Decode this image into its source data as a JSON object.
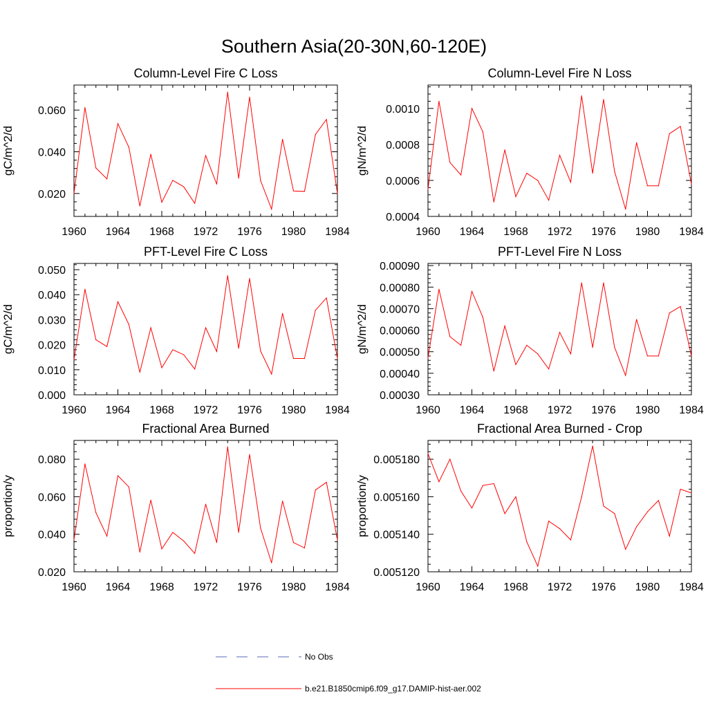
{
  "figure_title": "Southern Asia(20-30N,60-120E)",
  "legend": {
    "obs_label": "No Obs",
    "model_label": "b.e21.B1850cmip6.f09_g17.DAMIP-hist-aer.002",
    "obs_color": "#5a6ab0",
    "model_color": "#ff0000"
  },
  "chart_data": [
    {
      "type": "line",
      "title": "Column-Level Fire C Loss",
      "ylabel": "gC/m^2/d",
      "xlim": [
        1960,
        1984
      ],
      "ylim": [
        0.009,
        0.072
      ],
      "xticks": [
        1960,
        1964,
        1968,
        1972,
        1976,
        1980,
        1984
      ],
      "xtick_labels": [
        "1960",
        "1964",
        "1968",
        "1972",
        "1976",
        "1980",
        "1984"
      ],
      "yticks": [
        0.02,
        0.04,
        0.06
      ],
      "ytick_labels": [
        "0.020",
        "0.040",
        "0.060"
      ],
      "x": [
        1960,
        1961,
        1962,
        1963,
        1964,
        1965,
        1966,
        1967,
        1968,
        1969,
        1970,
        1971,
        1972,
        1973,
        1974,
        1975,
        1976,
        1977,
        1978,
        1979,
        1980,
        1981,
        1982,
        1983,
        1984
      ],
      "series": [
        {
          "values": [
            0.02,
            0.0612,
            0.0322,
            0.027,
            0.0535,
            0.0422,
            0.014,
            0.0388,
            0.0158,
            0.0263,
            0.0232,
            0.0153,
            0.0382,
            0.0245,
            0.0686,
            0.0273,
            0.0662,
            0.0262,
            0.0125,
            0.046,
            0.0212,
            0.021,
            0.0483,
            0.0555,
            0.02
          ]
        }
      ]
    },
    {
      "type": "line",
      "title": "Column-Level Fire N Loss",
      "ylabel": "gN/m^2/d",
      "xlim": [
        1960,
        1984
      ],
      "ylim": [
        0.0004,
        0.00113
      ],
      "xticks": [
        1960,
        1964,
        1968,
        1972,
        1976,
        1980,
        1984
      ],
      "xtick_labels": [
        "1960",
        "1964",
        "1968",
        "1972",
        "1976",
        "1980",
        "1984"
      ],
      "yticks": [
        0.0004,
        0.0006,
        0.0008,
        0.001
      ],
      "ytick_labels": [
        "0.0004",
        "0.0006",
        "0.0008",
        "0.0010"
      ],
      "x": [
        1960,
        1961,
        1962,
        1963,
        1964,
        1965,
        1966,
        1967,
        1968,
        1969,
        1970,
        1971,
        1972,
        1973,
        1974,
        1975,
        1976,
        1977,
        1978,
        1979,
        1980,
        1981,
        1982,
        1983,
        1984
      ],
      "series": [
        {
          "values": [
            0.00055,
            0.00104,
            0.0007,
            0.00063,
            0.001,
            0.00087,
            0.00048,
            0.00077,
            0.00051,
            0.00064,
            0.0006,
            0.00049,
            0.00074,
            0.00059,
            0.00107,
            0.00064,
            0.00105,
            0.00065,
            0.00044,
            0.00081,
            0.00057,
            0.00057,
            0.00086,
            0.0009,
            0.00058
          ]
        }
      ]
    },
    {
      "type": "line",
      "title": "PFT-Level Fire C Loss",
      "ylabel": "gC/m^2/d",
      "xlim": [
        1960,
        1984
      ],
      "ylim": [
        0.0,
        0.0525
      ],
      "xticks": [
        1960,
        1964,
        1968,
        1972,
        1976,
        1980,
        1984
      ],
      "xtick_labels": [
        "1960",
        "1964",
        "1968",
        "1972",
        "1976",
        "1980",
        "1984"
      ],
      "yticks": [
        0.0,
        0.01,
        0.02,
        0.03,
        0.04,
        0.05
      ],
      "ytick_labels": [
        "0.000",
        "0.010",
        "0.020",
        "0.030",
        "0.040",
        "0.050"
      ],
      "x": [
        1960,
        1961,
        1962,
        1963,
        1964,
        1965,
        1966,
        1967,
        1968,
        1969,
        1970,
        1971,
        1972,
        1973,
        1974,
        1975,
        1976,
        1977,
        1978,
        1979,
        1980,
        1981,
        1982,
        1983,
        1984
      ],
      "series": [
        {
          "values": [
            0.014,
            0.0422,
            0.022,
            0.0193,
            0.0372,
            0.0281,
            0.009,
            0.0268,
            0.0108,
            0.018,
            0.016,
            0.0103,
            0.0268,
            0.0173,
            0.0476,
            0.0186,
            0.0465,
            0.0175,
            0.0083,
            0.0325,
            0.0145,
            0.0145,
            0.0338,
            0.0387,
            0.0145
          ]
        }
      ]
    },
    {
      "type": "line",
      "title": "PFT-Level Fire N Loss",
      "ylabel": "gN/m^2/d",
      "xlim": [
        1960,
        1984
      ],
      "ylim": [
        0.0003,
        0.00091
      ],
      "xticks": [
        1960,
        1964,
        1968,
        1972,
        1976,
        1980,
        1984
      ],
      "xtick_labels": [
        "1960",
        "1964",
        "1968",
        "1972",
        "1976",
        "1980",
        "1984"
      ],
      "yticks": [
        0.0003,
        0.0004,
        0.0005,
        0.0006,
        0.0007,
        0.0008,
        0.0009
      ],
      "ytick_labels": [
        "0.00030",
        "0.00040",
        "0.00050",
        "0.00060",
        "0.00070",
        "0.00080",
        "0.00090"
      ],
      "x": [
        1960,
        1961,
        1962,
        1963,
        1964,
        1965,
        1966,
        1967,
        1968,
        1969,
        1970,
        1971,
        1972,
        1973,
        1974,
        1975,
        1976,
        1977,
        1978,
        1979,
        1980,
        1981,
        1982,
        1983,
        1984
      ],
      "series": [
        {
          "values": [
            0.00047,
            0.00079,
            0.00057,
            0.00053,
            0.00078,
            0.00066,
            0.00041,
            0.00062,
            0.00044,
            0.00053,
            0.00049,
            0.00042,
            0.00059,
            0.00049,
            0.00082,
            0.00052,
            0.00082,
            0.00052,
            0.00039,
            0.00065,
            0.00048,
            0.00048,
            0.00068,
            0.00071,
            0.00048
          ]
        }
      ]
    },
    {
      "type": "line",
      "title": "Fractional Area Burned",
      "ylabel": "proportion/y",
      "xlim": [
        1960,
        1984
      ],
      "ylim": [
        0.02,
        0.09
      ],
      "xticks": [
        1960,
        1964,
        1968,
        1972,
        1976,
        1980,
        1984
      ],
      "xtick_labels": [
        "1960",
        "1964",
        "1968",
        "1972",
        "1976",
        "1980",
        "1984"
      ],
      "yticks": [
        0.02,
        0.04,
        0.06,
        0.08
      ],
      "ytick_labels": [
        "0.020",
        "0.040",
        "0.060",
        "0.080"
      ],
      "x": [
        1960,
        1961,
        1962,
        1963,
        1964,
        1965,
        1966,
        1967,
        1968,
        1969,
        1970,
        1971,
        1972,
        1973,
        1974,
        1975,
        1976,
        1977,
        1978,
        1979,
        1980,
        1981,
        1982,
        1983,
        1984
      ],
      "series": [
        {
          "values": [
            0.037,
            0.0775,
            0.0515,
            0.039,
            0.0712,
            0.0652,
            0.0305,
            0.0582,
            0.0322,
            0.041,
            0.0364,
            0.0298,
            0.056,
            0.0356,
            0.0866,
            0.041,
            0.0825,
            0.0432,
            0.0248,
            0.0577,
            0.0356,
            0.0327,
            0.0636,
            0.0677,
            0.037
          ]
        }
      ]
    },
    {
      "type": "line",
      "title": "Fractional Area Burned - Crop",
      "ylabel": "proportion/y",
      "xlim": [
        1960,
        1984
      ],
      "ylim": [
        0.00512,
        0.00519
      ],
      "xticks": [
        1960,
        1964,
        1968,
        1972,
        1976,
        1980,
        1984
      ],
      "xtick_labels": [
        "1960",
        "1964",
        "1968",
        "1972",
        "1976",
        "1980",
        "1984"
      ],
      "yticks": [
        0.00512,
        0.00514,
        0.00516,
        0.00518
      ],
      "ytick_labels": [
        "0.005120",
        "0.005140",
        "0.005160",
        "0.005180"
      ],
      "x": [
        1960,
        1961,
        1962,
        1963,
        1964,
        1965,
        1966,
        1967,
        1968,
        1969,
        1970,
        1971,
        1972,
        1973,
        1974,
        1975,
        1976,
        1977,
        1978,
        1979,
        1980,
        1981,
        1982,
        1983,
        1984
      ],
      "series": [
        {
          "values": [
            0.005183,
            0.005168,
            0.00518,
            0.005163,
            0.005154,
            0.005166,
            0.005167,
            0.005151,
            0.00516,
            0.005136,
            0.005123,
            0.005147,
            0.005143,
            0.005137,
            0.00516,
            0.005187,
            0.005155,
            0.005151,
            0.005132,
            0.005144,
            0.005152,
            0.005158,
            0.005139,
            0.005164,
            0.005162
          ]
        }
      ]
    }
  ]
}
